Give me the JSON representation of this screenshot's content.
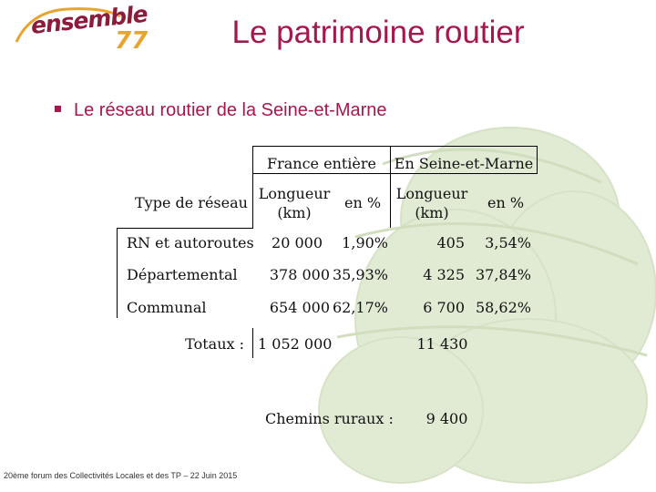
{
  "logo": {
    "text": "ensemble",
    "number": "77"
  },
  "title": "Le patrimoine routier",
  "bullet": "Le réseau routier de la Seine-et-Marne",
  "table": {
    "group_france": "France entière",
    "group_seine": "En Seine-et-Marne",
    "row_header": "Type de réseau",
    "col_length_france": [
      "Longueur",
      "(km)"
    ],
    "col_pct_france": "en %",
    "col_length_seine": [
      "Longueur",
      "(km)"
    ],
    "col_pct_seine": "en %",
    "rows": [
      {
        "type": "RN et autoroutes",
        "fr_km": "20 000",
        "fr_pct": "1,90%",
        "sm_km": "405",
        "sm_pct": "3,54%"
      },
      {
        "type": "Départemental",
        "fr_km": "378 000",
        "fr_pct": "35,93%",
        "sm_km": "4 325",
        "sm_pct": "37,84%"
      },
      {
        "type": "Communal",
        "fr_km": "654 000",
        "fr_pct": "62,17%",
        "sm_km": "6 700",
        "sm_pct": "58,62%"
      }
    ],
    "totals_label": "Totaux :",
    "totals_fr_km": "1 052 000",
    "totals_sm_km": "11 430",
    "rural_label": "Chemins ruraux :",
    "rural_sm_km": "9 400"
  },
  "footer": "20ème forum des Collectivités Locales et des TP – 22 Juin 2015",
  "colors": {
    "accent": "#a3184f",
    "logo_orange": "#e6a52e",
    "bg_art": "#c9dbb2"
  }
}
